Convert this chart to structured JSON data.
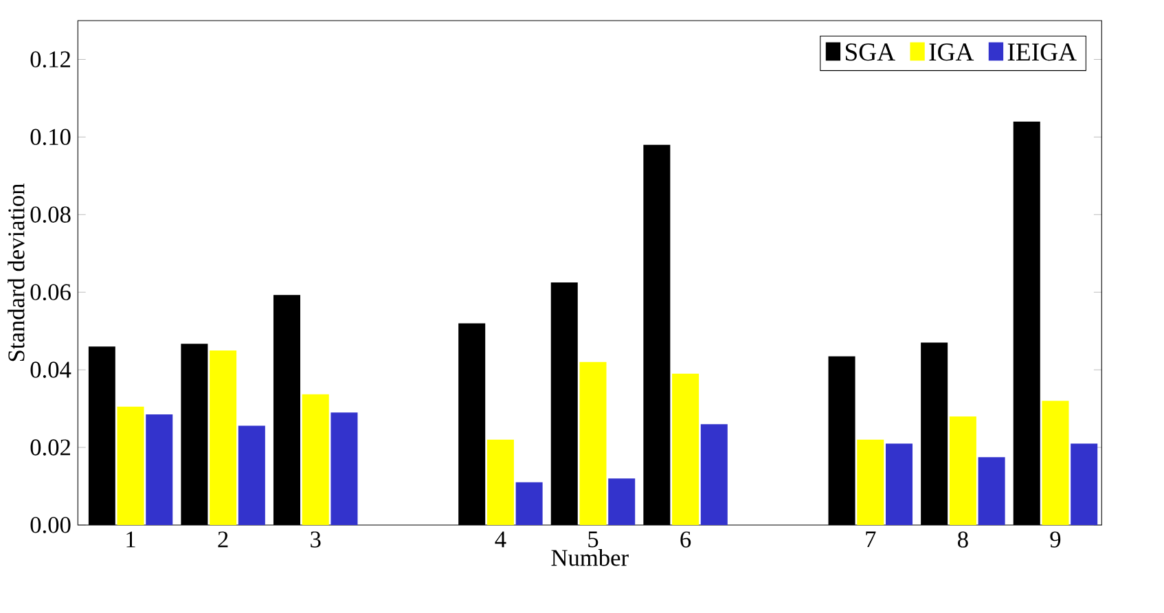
{
  "chart_data": {
    "type": "bar",
    "xlabel": "Number",
    "ylabel": "Standard deviation",
    "categories": [
      "1",
      "2",
      "3",
      null,
      "4",
      "5",
      "6",
      null,
      "7",
      "8",
      "9"
    ],
    "series": [
      {
        "name": "SGA",
        "color": "#000000",
        "values": [
          0.046,
          0.0467,
          0.0593,
          null,
          0.052,
          0.0625,
          0.098,
          null,
          0.0435,
          0.047,
          0.104
        ]
      },
      {
        "name": "IGA",
        "color": "#ffff00",
        "values": [
          0.0305,
          0.045,
          0.0337,
          null,
          0.022,
          0.042,
          0.039,
          null,
          0.022,
          0.028,
          0.032
        ]
      },
      {
        "name": "IEIGA",
        "color": "#3333cc",
        "values": [
          0.0285,
          0.0256,
          0.029,
          null,
          0.011,
          0.012,
          0.026,
          null,
          0.021,
          0.0175,
          0.021
        ]
      }
    ],
    "ylim": [
      0,
      0.13
    ],
    "yticks": [
      {
        "value": 0,
        "label": "0.00"
      },
      {
        "value": 0.02,
        "label": "0.02"
      },
      {
        "value": 0.04,
        "label": "0.04"
      },
      {
        "value": 0.06,
        "label": "0.06"
      },
      {
        "value": 0.08,
        "label": "0.08"
      },
      {
        "value": 0.1,
        "label": "0.10"
      },
      {
        "value": 0.12,
        "label": "0.12"
      }
    ],
    "legend": "top right"
  }
}
